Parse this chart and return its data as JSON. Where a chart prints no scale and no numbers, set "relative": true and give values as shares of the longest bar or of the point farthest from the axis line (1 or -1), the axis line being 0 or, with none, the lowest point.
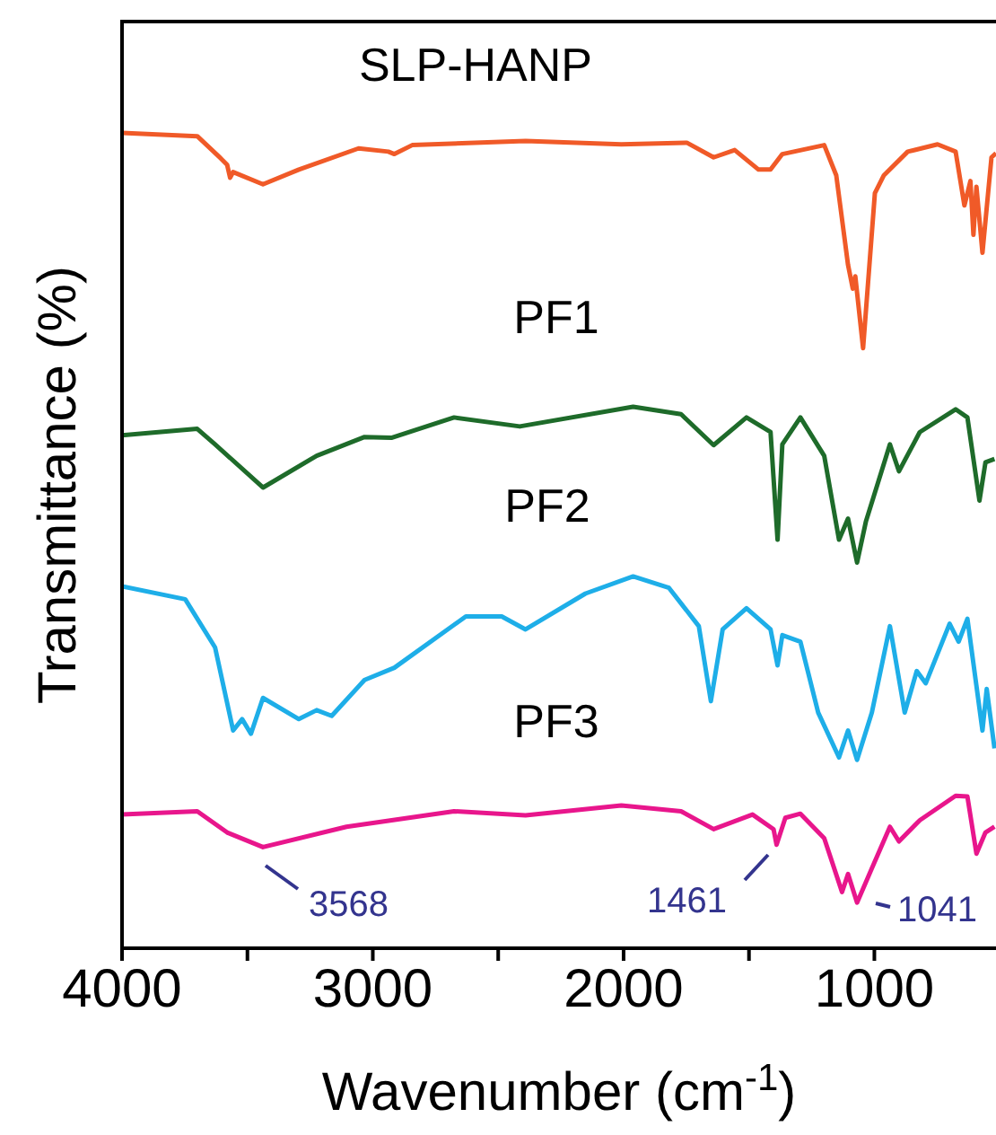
{
  "chart_data": {
    "type": "line",
    "relative": true,
    "xlabel": "Wavenumber (cm$^{-1}$)",
    "ylabel": "Transmittance (%)",
    "xlim": [
      4000,
      515
    ],
    "xticks": [
      4000,
      {
        "value": 3500,
        "label": null
      },
      3000,
      {
        "value": 2500,
        "label": null
      },
      2000,
      {
        "value": 1500,
        "label": null
      },
      1000
    ],
    "tick_labels": "x",
    "grid": false,
    "legend": false,
    "marker": "none",
    "line_style": "solid",
    "series": [
      {
        "name": "SLP-HANP",
        "color": "#f05a28",
        "x": [
          4000,
          3700,
          3607,
          3581,
          3569,
          3557,
          3438,
          3295,
          3057,
          2938,
          2914,
          2843,
          2391,
          2009,
          1748,
          1641,
          1557,
          1462,
          1414,
          1367,
          1200,
          1152,
          1105,
          1086,
          1076,
          1045,
          998,
          962,
          867,
          748,
          676,
          641,
          617,
          605,
          593,
          569,
          533,
          515
        ],
        "values": [
          1,
          0.996,
          0.969,
          0.961,
          0.945,
          0.952,
          0.937,
          0.955,
          0.981,
          0.977,
          0.974,
          0.985,
          0.99,
          0.986,
          0.988,
          0.97,
          0.979,
          0.955,
          0.955,
          0.974,
          0.985,
          0.948,
          0.838,
          0.809,
          0.824,
          0.736,
          0.926,
          0.948,
          0.977,
          0.986,
          0.977,
          0.911,
          0.941,
          0.875,
          0.934,
          0.853,
          0.97,
          0.975
        ]
      },
      {
        "name": "PF1",
        "color": "#1e6b2a",
        "x": [
          4000,
          3700,
          3629,
          3438,
          3224,
          3033,
          2926,
          2676,
          2414,
          1962,
          1771,
          1641,
          1510,
          1414,
          1386,
          1367,
          1295,
          1200,
          1141,
          1105,
          1069,
          1034,
          938,
          902,
          819,
          676,
          629,
          581,
          557,
          521
        ],
        "values": [
          0.629,
          0.637,
          0.618,
          0.565,
          0.604,
          0.627,
          0.626,
          0.651,
          0.64,
          0.664,
          0.655,
          0.617,
          0.651,
          0.633,
          0.501,
          0.618,
          0.651,
          0.604,
          0.501,
          0.527,
          0.473,
          0.523,
          0.618,
          0.585,
          0.633,
          0.661,
          0.651,
          0.549,
          0.596,
          0.6
        ]
      },
      {
        "name": "PF2",
        "color": "#1eaee8",
        "x": [
          4000,
          3748,
          3629,
          3557,
          3521,
          3486,
          3438,
          3295,
          3224,
          3164,
          3033,
          2914,
          2629,
          2486,
          2391,
          2152,
          1962,
          1819,
          1700,
          1652,
          1605,
          1510,
          1414,
          1386,
          1367,
          1295,
          1224,
          1141,
          1105,
          1069,
          1010,
          938,
          879,
          831,
          795,
          700,
          664,
          629,
          569,
          552,
          521
        ],
        "values": [
          0.444,
          0.428,
          0.369,
          0.267,
          0.281,
          0.263,
          0.307,
          0.281,
          0.292,
          0.285,
          0.329,
          0.344,
          0.407,
          0.407,
          0.391,
          0.435,
          0.456,
          0.442,
          0.395,
          0.303,
          0.391,
          0.417,
          0.391,
          0.347,
          0.384,
          0.376,
          0.289,
          0.234,
          0.267,
          0.231,
          0.289,
          0.395,
          0.289,
          0.34,
          0.325,
          0.398,
          0.376,
          0.404,
          0.267,
          0.318,
          0.245
        ]
      },
      {
        "name": "PF3",
        "color": "#e8168c",
        "x": [
          4000,
          3700,
          3581,
          3438,
          3105,
          2676,
          2391,
          2009,
          1771,
          1641,
          1486,
          1402,
          1390,
          1355,
          1295,
          1200,
          1129,
          1105,
          1069,
          1010,
          938,
          902,
          819,
          676,
          629,
          593,
          557,
          521
        ],
        "values": [
          0.164,
          0.168,
          0.142,
          0.124,
          0.149,
          0.168,
          0.163,
          0.175,
          0.168,
          0.146,
          0.164,
          0.146,
          0.127,
          0.16,
          0.165,
          0.135,
          0.069,
          0.091,
          0.056,
          0.098,
          0.149,
          0.131,
          0.157,
          0.187,
          0.186,
          0.116,
          0.142,
          0.149
        ]
      }
    ],
    "annotations": [
      "3568",
      "1461",
      "1041"
    ]
  }
}
